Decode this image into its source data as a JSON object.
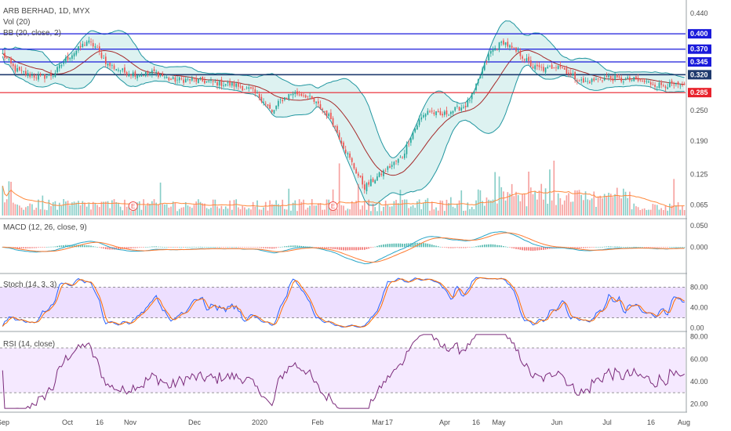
{
  "header": {
    "symbol": "ARB BERHAD, 1D, MYX",
    "vol": "Vol (20)",
    "bb": "BB (20, close, 2)",
    "macd": "MACD (12, 26, close, 9)",
    "stoch": "Stoch (14, 3, 3)",
    "rsi": "RSI (14, close)"
  },
  "colors": {
    "up": "#26a69a",
    "down": "#ef5350",
    "bb_band": "#2196a0",
    "bb_basis": "#a52a2a",
    "bb_fill": "#d7f0ee",
    "hline_blue": "#1a1adb",
    "hline_dark": "#1f3a6e",
    "hline_red": "#e8222c",
    "vol_ma": "#ff8a3d",
    "macd_line": "#2aa6c8",
    "signal_line": "#ff7a30",
    "stoch_k": "#2962ff",
    "stoch_d": "#ff6d00",
    "stoch_band": "#e6d2ff",
    "rsi_line": "#7b2b7b",
    "rsi_band": "#f2e3ff"
  },
  "x_axis": {
    "labels": [
      "Sep",
      "Oct",
      "16",
      "Nov",
      "Dec",
      "2020",
      "Feb",
      "Mar",
      "17",
      "Apr",
      "16",
      "May",
      "Jun",
      "Jul",
      "16",
      "Aug"
    ]
  },
  "chart_data": [
    {
      "type": "candlestick",
      "name": "price",
      "y_ticks": [
        "0.440",
        "0.400",
        "0.370",
        "0.345",
        "0.320",
        "0.285",
        "0.250",
        "0.190",
        "0.125",
        "0.065"
      ],
      "ylim": [
        0.04,
        0.46
      ],
      "hlines": [
        {
          "value": 0.4,
          "label": "0.400",
          "style": "blue"
        },
        {
          "value": 0.37,
          "label": "0.370",
          "style": "blue"
        },
        {
          "value": 0.345,
          "label": "0.345",
          "style": "blue"
        },
        {
          "value": 0.32,
          "label": "0.320",
          "style": "dark"
        },
        {
          "value": 0.285,
          "label": "0.285",
          "style": "red"
        }
      ],
      "close_keypoints": [
        [
          0,
          0.36
        ],
        [
          6,
          0.33
        ],
        [
          12,
          0.32
        ],
        [
          18,
          0.315
        ],
        [
          24,
          0.32
        ],
        [
          30,
          0.35
        ],
        [
          36,
          0.37
        ],
        [
          40,
          0.385
        ],
        [
          44,
          0.375
        ],
        [
          50,
          0.34
        ],
        [
          58,
          0.325
        ],
        [
          66,
          0.32
        ],
        [
          72,
          0.325
        ],
        [
          80,
          0.31
        ],
        [
          90,
          0.31
        ],
        [
          100,
          0.305
        ],
        [
          110,
          0.3
        ],
        [
          118,
          0.29
        ],
        [
          124,
          0.27
        ],
        [
          128,
          0.245
        ],
        [
          132,
          0.27
        ],
        [
          138,
          0.285
        ],
        [
          144,
          0.28
        ],
        [
          150,
          0.26
        ],
        [
          156,
          0.235
        ],
        [
          162,
          0.18
        ],
        [
          168,
          0.13
        ],
        [
          172,
          0.1
        ],
        [
          178,
          0.12
        ],
        [
          184,
          0.14
        ],
        [
          190,
          0.16
        ],
        [
          194,
          0.2
        ],
        [
          198,
          0.23
        ],
        [
          202,
          0.25
        ],
        [
          208,
          0.24
        ],
        [
          214,
          0.25
        ],
        [
          220,
          0.26
        ],
        [
          224,
          0.285
        ],
        [
          228,
          0.33
        ],
        [
          232,
          0.365
        ],
        [
          238,
          0.385
        ],
        [
          242,
          0.37
        ],
        [
          246,
          0.36
        ],
        [
          252,
          0.335
        ],
        [
          258,
          0.33
        ],
        [
          264,
          0.34
        ],
        [
          270,
          0.32
        ],
        [
          276,
          0.305
        ],
        [
          282,
          0.31
        ],
        [
          288,
          0.315
        ],
        [
          294,
          0.31
        ],
        [
          300,
          0.31
        ],
        [
          306,
          0.305
        ],
        [
          312,
          0.3
        ],
        [
          318,
          0.3
        ],
        [
          324,
          0.295
        ]
      ],
      "bars": 325
    },
    {
      "type": "bar",
      "name": "volume",
      "note_markers": [
        "E",
        "E"
      ]
    },
    {
      "type": "line",
      "name": "macd",
      "y_ticks": [
        "0.050",
        "0.000"
      ],
      "ylim": [
        -0.06,
        0.065
      ]
    },
    {
      "type": "line",
      "name": "stoch",
      "y_ticks": [
        "80.00",
        "40.00",
        "0.00"
      ],
      "ylim": [
        -5,
        105
      ],
      "band": [
        20,
        80
      ]
    },
    {
      "type": "line",
      "name": "rsi",
      "y_ticks": [
        "80.00",
        "60.00",
        "40.00",
        "20.00"
      ],
      "ylim": [
        14,
        84
      ],
      "band": [
        30,
        70
      ]
    }
  ]
}
